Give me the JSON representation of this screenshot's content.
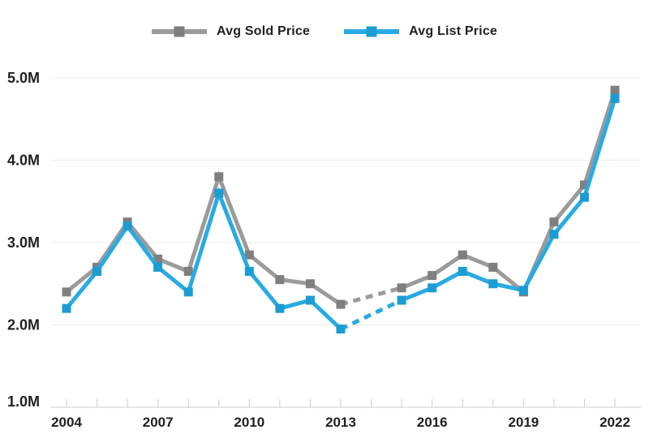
{
  "colors": {
    "text": "#231F20",
    "gridline": "#EDEDED",
    "axis": "#CDCDCD",
    "background": "#FFFFFF"
  },
  "chart_data": {
    "type": "line",
    "title": "",
    "xlabel": "",
    "ylabel": "",
    "unit": "M",
    "x": [
      2004,
      2005,
      2006,
      2007,
      2008,
      2009,
      2010,
      2011,
      2012,
      2013,
      2014,
      2015,
      2016,
      2017,
      2018,
      2019,
      2020,
      2021,
      2022
    ],
    "x_tick_labels": [
      "2004",
      "2007",
      "2010",
      "2013",
      "2016",
      "2019",
      "2022"
    ],
    "y_ticks": [
      1,
      2,
      3,
      4,
      5
    ],
    "y_tick_labels": [
      "1.0M",
      "2.0M",
      "3.0M",
      "4.0M",
      "5.0M"
    ],
    "ylim": [
      1,
      5
    ],
    "grid": "horizontal",
    "legend_position": "top",
    "gap_years": [
      2014
    ],
    "gap_style": "dashed",
    "series": [
      {
        "name": "Avg Sold Price",
        "color": "#9B9B9B",
        "marker_color": "#7F7F7F",
        "values": [
          2.4,
          2.7,
          3.25,
          2.8,
          2.65,
          3.8,
          2.85,
          2.55,
          2.5,
          2.25,
          null,
          2.45,
          2.6,
          2.85,
          2.7,
          2.4,
          3.25,
          3.7,
          4.85
        ]
      },
      {
        "name": "Avg List Price",
        "color": "#29ABE2",
        "marker_color": "#1B9CD3",
        "values": [
          2.2,
          2.65,
          3.2,
          2.7,
          2.4,
          3.6,
          2.65,
          2.2,
          2.3,
          1.95,
          null,
          2.3,
          2.45,
          2.65,
          2.5,
          2.42,
          3.1,
          3.55,
          4.75
        ]
      }
    ]
  }
}
